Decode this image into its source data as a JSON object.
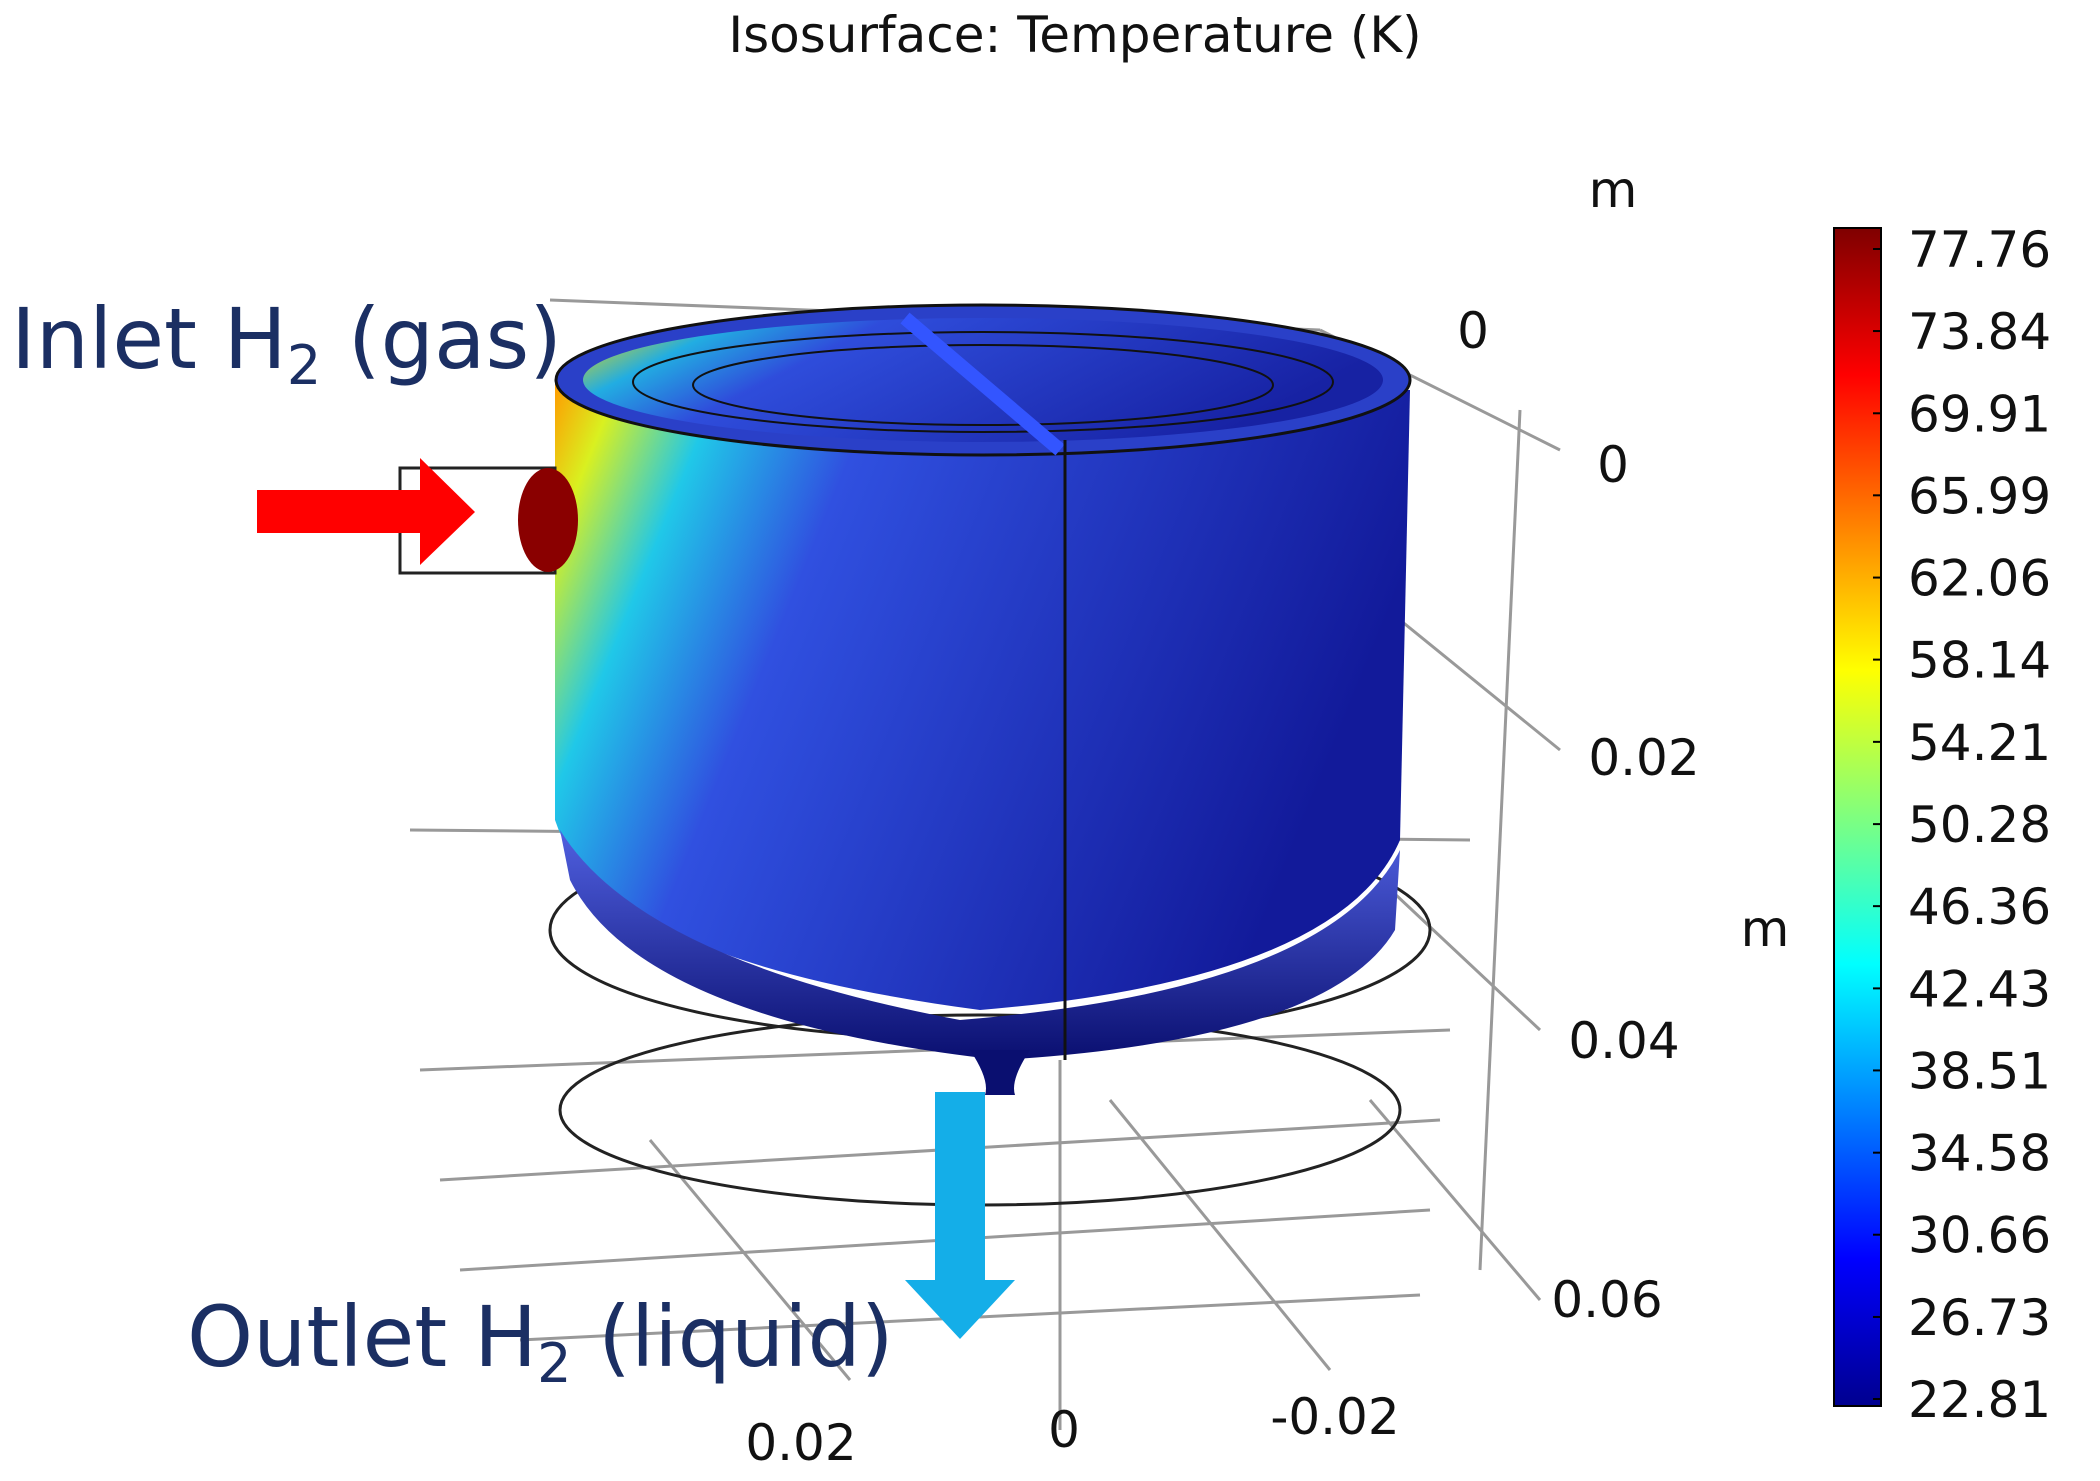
{
  "title": "Isosurface: Temperature (K)",
  "colorbar": {
    "ticks": [
      77.76,
      73.84,
      69.91,
      65.99,
      62.06,
      58.14,
      54.21,
      50.28,
      46.36,
      42.43,
      38.51,
      34.58,
      30.66,
      26.73,
      22.81
    ]
  },
  "axes": {
    "unit_top": "m",
    "unit_right": "m",
    "depth_labels": [
      "0",
      "0",
      "0.02",
      "0.04",
      "0.06"
    ],
    "bottom_labels": [
      "0.02",
      "0",
      "-0.02"
    ]
  },
  "annotations": {
    "inlet": {
      "prefix": "Inlet H",
      "sub": "2",
      "suffix": " (gas)"
    },
    "outlet": {
      "prefix": "Outlet H",
      "sub": "2",
      "suffix": " (liquid)"
    }
  }
}
